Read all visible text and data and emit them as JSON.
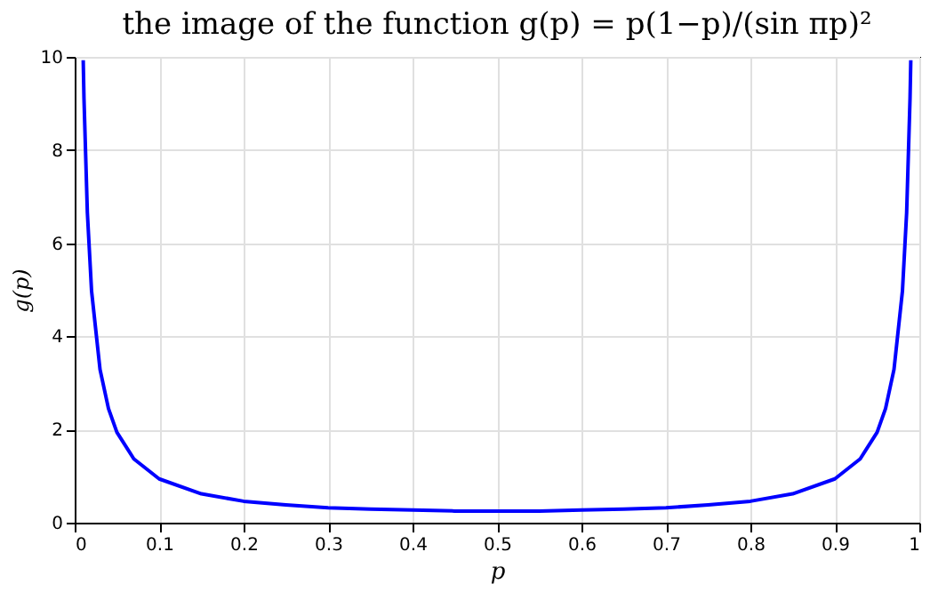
{
  "chart_data": {
    "type": "line",
    "title": "the image of the function g(p) = p(1−p)/(sin πp)²",
    "xlabel": "p",
    "ylabel": "g(p)",
    "series": [
      {
        "color": "#0000ff",
        "x": [
          0.0101,
          0.011,
          0.015,
          0.02,
          0.03,
          0.04,
          0.05,
          0.07,
          0.1,
          0.15,
          0.2,
          0.25,
          0.3,
          0.35,
          0.4,
          0.45,
          0.5,
          0.55,
          0.6,
          0.65,
          0.7,
          0.75,
          0.8,
          0.85,
          0.9,
          0.93,
          0.95,
          0.96,
          0.97,
          0.98,
          0.985,
          0.989,
          0.9899
        ],
        "values": [
          9.93,
          9.11,
          6.66,
          4.97,
          3.29,
          2.45,
          1.94,
          1.37,
          0.94,
          0.62,
          0.46,
          0.38,
          0.32,
          0.29,
          0.27,
          0.25,
          0.25,
          0.25,
          0.27,
          0.29,
          0.32,
          0.38,
          0.46,
          0.62,
          0.94,
          1.37,
          1.94,
          2.45,
          3.29,
          4.97,
          6.66,
          9.11,
          9.93
        ]
      }
    ],
    "xlim": [
      0,
      1
    ],
    "xticks": [
      0,
      0.1,
      0.2,
      0.3,
      0.4,
      0.5,
      0.6,
      0.7,
      0.8,
      0.9,
      1
    ],
    "ylim": [
      0,
      10
    ],
    "yticks": [
      0,
      2,
      4,
      6,
      8,
      10
    ],
    "grid": true,
    "marker": "none",
    "line_style": "solid"
  }
}
